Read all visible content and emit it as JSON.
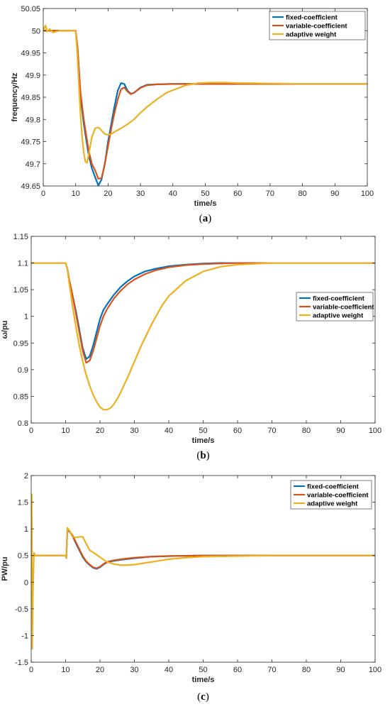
{
  "chart_data": [
    {
      "type": "line",
      "caption": "a",
      "xlabel": "time/s",
      "ylabel": "frequency/Hz",
      "xlim": [
        0,
        100
      ],
      "ylim": [
        49.65,
        50.05
      ],
      "xticks": [
        "0",
        "10",
        "20",
        "30",
        "40",
        "50",
        "60",
        "70",
        "80",
        "90",
        "100"
      ],
      "yticks": [
        "49.65",
        "49.7",
        "49.75",
        "49.8",
        "49.85",
        "49.9",
        "49.95",
        "50",
        "50.05"
      ],
      "grid": false,
      "legend_position": "top-right",
      "series": [
        {
          "name": "fixed-coefficient",
          "color": "#0072BD",
          "x": [
            0,
            10,
            10.6,
            11.5,
            12.5,
            14,
            15,
            16,
            17,
            18,
            19,
            20,
            21,
            22,
            23,
            24,
            25,
            26,
            27,
            28,
            30,
            32,
            35,
            40,
            50,
            60,
            100
          ],
          "y": [
            50.0,
            50.0,
            49.96,
            49.85,
            49.79,
            49.72,
            49.69,
            49.67,
            49.651,
            49.665,
            49.7,
            49.75,
            49.79,
            49.83,
            49.865,
            49.882,
            49.88,
            49.865,
            49.858,
            49.86,
            49.872,
            49.878,
            49.879,
            49.88,
            49.88,
            49.88,
            49.88
          ]
        },
        {
          "name": "variable-coefficient",
          "color": "#D95319",
          "x": [
            0,
            10,
            10.6,
            11.5,
            12.5,
            14,
            15,
            16,
            17,
            18,
            19,
            20,
            21,
            22,
            23,
            24,
            25,
            26,
            27,
            28,
            30,
            32,
            35,
            40,
            50,
            60,
            100
          ],
          "y": [
            50.0,
            50.0,
            49.96,
            49.86,
            49.8,
            49.73,
            49.7,
            49.685,
            49.666,
            49.668,
            49.7,
            49.74,
            49.78,
            49.815,
            49.845,
            49.868,
            49.872,
            49.863,
            49.857,
            49.86,
            49.871,
            49.877,
            49.879,
            49.88,
            49.88,
            49.88,
            49.88
          ]
        },
        {
          "name": "adaptive weight",
          "color": "#EDB120",
          "x": [
            0,
            0.7,
            1.2,
            2,
            3,
            5,
            8,
            10,
            10.5,
            11,
            11.5,
            12,
            12.5,
            13,
            13.5,
            14,
            15,
            16,
            17,
            18,
            19,
            20,
            21,
            22,
            24,
            26,
            28,
            30,
            32,
            35,
            38,
            40,
            44,
            48,
            52,
            56,
            60,
            70,
            80,
            100
          ],
          "y": [
            50.0,
            50.012,
            49.998,
            50.004,
            49.996,
            50.0,
            50.0,
            50.0,
            49.95,
            49.88,
            49.81,
            49.76,
            49.725,
            49.705,
            49.702,
            49.72,
            49.76,
            49.78,
            49.782,
            49.775,
            49.767,
            49.765,
            49.767,
            49.772,
            49.78,
            49.789,
            49.8,
            49.815,
            49.828,
            49.845,
            49.86,
            49.866,
            49.877,
            49.882,
            49.883,
            49.883,
            49.882,
            49.881,
            49.88,
            49.88
          ]
        }
      ]
    },
    {
      "type": "line",
      "caption": "b",
      "xlabel": "time/s",
      "ylabel": "ω/pu",
      "xlim": [
        0,
        100
      ],
      "ylim": [
        0.8,
        1.15
      ],
      "xticks": [
        "0",
        "10",
        "20",
        "30",
        "40",
        "50",
        "60",
        "70",
        "80",
        "90",
        "100"
      ],
      "yticks": [
        "0.8",
        "0.85",
        "0.9",
        "0.95",
        "1",
        "1.05",
        "1.1",
        "1.15"
      ],
      "grid": false,
      "legend_position": "right",
      "series": [
        {
          "name": "fixed-coefficient",
          "color": "#0072BD",
          "x": [
            0,
            10,
            10.5,
            11,
            12,
            13,
            14,
            15,
            16,
            17,
            18,
            19,
            20,
            21,
            22,
            24,
            26,
            28,
            30,
            33,
            36,
            40,
            45,
            50,
            55,
            60,
            70,
            80,
            100
          ],
          "y": [
            1.1,
            1.1,
            1.09,
            1.07,
            1.04,
            1.01,
            0.975,
            0.94,
            0.92,
            0.925,
            0.945,
            0.97,
            0.995,
            1.012,
            1.022,
            1.04,
            1.055,
            1.066,
            1.075,
            1.084,
            1.089,
            1.094,
            1.097,
            1.099,
            1.1,
            1.1,
            1.1,
            1.1,
            1.1
          ]
        },
        {
          "name": "variable-coefficient",
          "color": "#D95319",
          "x": [
            0,
            10,
            10.5,
            11,
            12,
            13,
            14,
            15,
            16,
            17,
            18,
            19,
            20,
            21,
            22,
            24,
            26,
            28,
            30,
            33,
            36,
            40,
            45,
            50,
            55,
            60,
            70,
            80,
            100
          ],
          "y": [
            1.1,
            1.1,
            1.09,
            1.07,
            1.04,
            1.005,
            0.97,
            0.935,
            0.913,
            0.917,
            0.935,
            0.958,
            0.982,
            1.0,
            1.013,
            1.033,
            1.048,
            1.06,
            1.069,
            1.079,
            1.086,
            1.092,
            1.096,
            1.098,
            1.099,
            1.1,
            1.1,
            1.1,
            1.1
          ]
        },
        {
          "name": "adaptive weight",
          "color": "#EDB120",
          "x": [
            0,
            10,
            10.5,
            11,
            12,
            13,
            14,
            15,
            16,
            17,
            18,
            19,
            20,
            21,
            22,
            23,
            24,
            25,
            26,
            28,
            30,
            32,
            35,
            38,
            40,
            45,
            50,
            55,
            60,
            70,
            80,
            100
          ],
          "y": [
            1.1,
            1.1,
            1.09,
            1.065,
            1.02,
            0.98,
            0.945,
            0.915,
            0.89,
            0.87,
            0.853,
            0.84,
            0.83,
            0.825,
            0.825,
            0.828,
            0.835,
            0.845,
            0.857,
            0.885,
            0.915,
            0.945,
            0.985,
            1.02,
            1.038,
            1.067,
            1.084,
            1.093,
            1.097,
            1.1,
            1.1,
            1.1
          ]
        }
      ]
    },
    {
      "type": "line",
      "caption": "c",
      "xlabel": "time/s",
      "ylabel": "PW/pu",
      "xlim": [
        0,
        100
      ],
      "ylim": [
        -1.5,
        2
      ],
      "xticks": [
        "0",
        "10",
        "20",
        "30",
        "40",
        "50",
        "60",
        "70",
        "80",
        "90",
        "100"
      ],
      "yticks": [
        "-1.5",
        "-1",
        "-0.5",
        "0",
        "0.5",
        "1",
        "1.5",
        "2"
      ],
      "grid": false,
      "legend_position": "top-right",
      "series": [
        {
          "name": "fixed-coefficient",
          "color": "#0072BD",
          "x": [
            0,
            10,
            10.2,
            10.5,
            11,
            12,
            13,
            14,
            15,
            16,
            17,
            18,
            19,
            20,
            21,
            22,
            24,
            26,
            30,
            35,
            40,
            50,
            60,
            100
          ],
          "y": [
            0.5,
            0.5,
            0.45,
            0.95,
            0.96,
            0.87,
            0.73,
            0.6,
            0.47,
            0.38,
            0.32,
            0.27,
            0.25,
            0.28,
            0.33,
            0.37,
            0.4,
            0.42,
            0.45,
            0.48,
            0.49,
            0.5,
            0.5,
            0.5
          ]
        },
        {
          "name": "variable-coefficient",
          "color": "#D95319",
          "x": [
            0,
            10,
            10.2,
            10.5,
            11,
            12,
            13,
            14,
            15,
            16,
            17,
            18,
            19,
            20,
            21,
            22,
            24,
            26,
            30,
            35,
            40,
            50,
            60,
            100
          ],
          "y": [
            0.5,
            0.5,
            0.45,
            0.96,
            0.97,
            0.88,
            0.75,
            0.62,
            0.49,
            0.39,
            0.33,
            0.28,
            0.26,
            0.29,
            0.34,
            0.38,
            0.41,
            0.43,
            0.46,
            0.48,
            0.49,
            0.5,
            0.5,
            0.5
          ]
        },
        {
          "name": "adaptive weight",
          "color": "#EDB120",
          "x": [
            0,
            0.15,
            0.3,
            0.5,
            0.8,
            1.2,
            10,
            10.2,
            10.5,
            11,
            12,
            13,
            14,
            15,
            16,
            17,
            18,
            20,
            22,
            24,
            26,
            28,
            30,
            35,
            40,
            45,
            50,
            60,
            70,
            80,
            100
          ],
          "y": [
            1.65,
            1.65,
            -1.25,
            -0.2,
            0.55,
            0.5,
            0.5,
            0.45,
            1.02,
            0.98,
            0.85,
            0.84,
            0.85,
            0.85,
            0.72,
            0.6,
            0.56,
            0.47,
            0.38,
            0.34,
            0.32,
            0.32,
            0.33,
            0.38,
            0.43,
            0.46,
            0.48,
            0.49,
            0.5,
            0.5,
            0.5
          ]
        }
      ]
    }
  ]
}
